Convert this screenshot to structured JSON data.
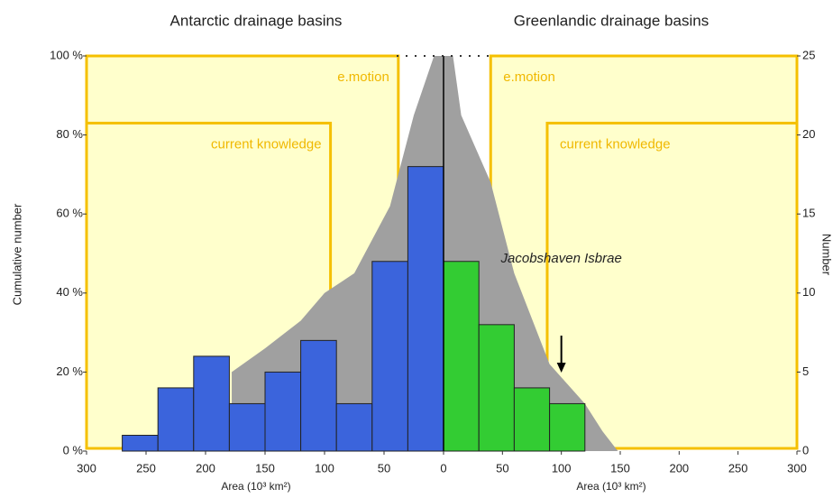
{
  "chart_data": {
    "type": "histogram",
    "ylabel": "Cumulative number",
    "y2label": "Number",
    "ylim": [
      0,
      100
    ],
    "yticks": [
      {
        "value": 0,
        "label": "0 %"
      },
      {
        "value": 20,
        "label": "20 %"
      },
      {
        "value": 40,
        "label": "40 %"
      },
      {
        "value": 60,
        "label": "60 %"
      },
      {
        "value": 80,
        "label": "80 %"
      },
      {
        "value": 100,
        "label": "100 %"
      }
    ],
    "y2lim": [
      0,
      25
    ],
    "y2ticks": [
      0,
      5,
      10,
      15,
      20,
      25
    ],
    "panels": [
      {
        "title": "Antarctic drainage basins",
        "xlabel": "Area (10³ km²)",
        "xlim": [
          300,
          0
        ],
        "xticks": [
          300,
          250,
          200,
          150,
          100,
          50,
          0
        ],
        "bins": [
          270,
          240,
          210,
          180,
          150,
          120,
          90,
          60,
          30,
          0
        ],
        "counts": [
          1,
          4,
          6,
          3,
          5,
          7,
          3,
          12,
          18
        ],
        "axis": "y2",
        "color": "#3b64dc",
        "cumulative": {
          "color": "#a0a0a0",
          "x": [
            178,
            178,
            150,
            120,
            100,
            75,
            45,
            25,
            8,
            0,
            0
          ],
          "y": [
            0,
            20,
            26,
            33,
            40,
            45,
            62,
            85,
            100,
            100,
            0
          ]
        },
        "regions": [
          {
            "label": "e.motion",
            "x": [
              300,
              38
            ],
            "y": 100
          },
          {
            "label": "current knowledge",
            "x": [
              300,
              95
            ],
            "y": 83
          }
        ]
      },
      {
        "title": "Greenlandic drainage basins",
        "xlabel": "Area (10³ km²)",
        "xlim": [
          0,
          300
        ],
        "xticks": [
          50,
          100,
          150,
          200,
          250,
          300
        ],
        "bins": [
          0,
          30,
          60,
          90,
          120
        ],
        "counts": [
          12,
          8,
          4,
          3
        ],
        "axis": "y2",
        "color": "#33cc33",
        "cumulative": {
          "color": "#a0a0a0",
          "x": [
            0,
            8,
            15,
            40,
            60,
            90,
            120,
            135,
            148,
            0
          ],
          "y": [
            100,
            100,
            85,
            68,
            45,
            22,
            12,
            5,
            0,
            0
          ]
        },
        "regions": [
          {
            "label": "e.motion",
            "x": [
              40,
              300
            ],
            "y": 100
          },
          {
            "label": "current knowledge",
            "x": [
              88,
              300
            ],
            "y": 83
          }
        ],
        "annotation": {
          "text": "Jacobshaven Isbrae",
          "x": 100
        }
      }
    ]
  }
}
